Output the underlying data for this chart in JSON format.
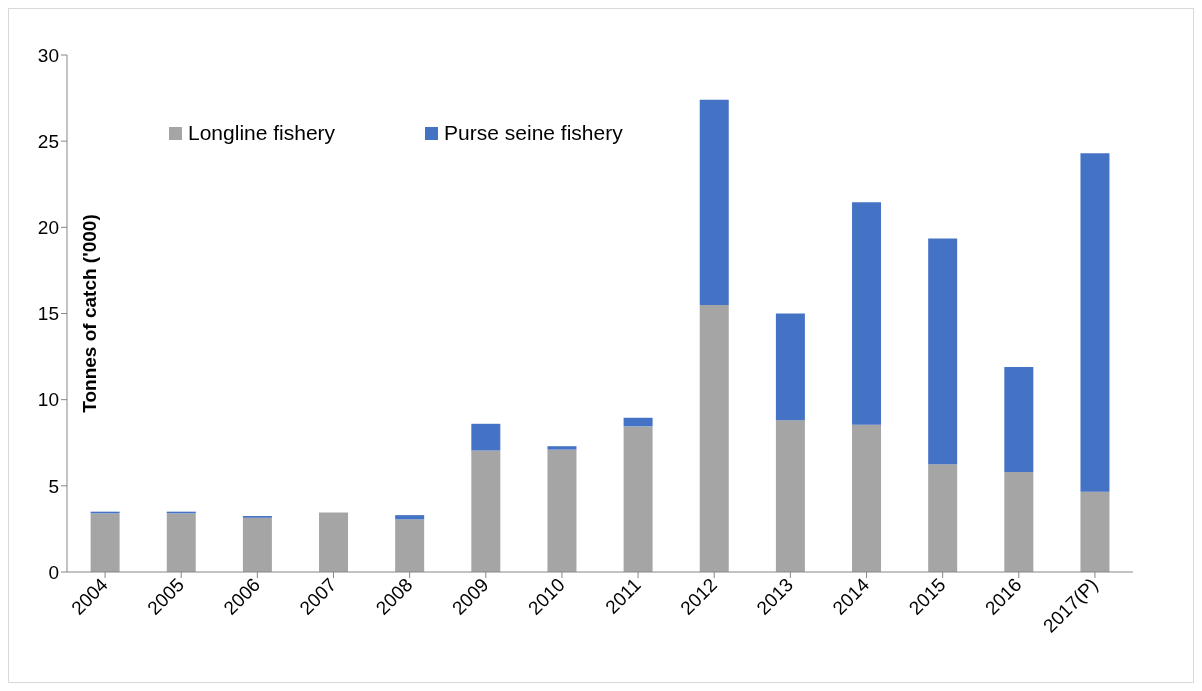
{
  "chart_data": {
    "type": "bar",
    "stacked": true,
    "ylabel": "Tonnes of catch ('000)",
    "categories": [
      "2004",
      "2005",
      "2006",
      "2007",
      "2008",
      "2009",
      "2010",
      "2011",
      "2012",
      "2013",
      "2014",
      "2015",
      "2016",
      "2017(P)"
    ],
    "series": [
      {
        "name": "Longline fishery",
        "color": "#a5a5a5",
        "values": [
          3.4,
          3.4,
          3.15,
          3.45,
          3.05,
          7.05,
          7.1,
          8.45,
          15.5,
          8.8,
          8.55,
          6.25,
          5.8,
          4.65
        ]
      },
      {
        "name": "Purse seine fishery",
        "color": "#4472c4",
        "values": [
          0.1,
          0.1,
          0.1,
          0,
          0.25,
          1.55,
          0.2,
          0.5,
          11.9,
          6.2,
          12.9,
          13.1,
          6.1,
          19.65
        ]
      }
    ],
    "ylim": [
      0,
      30
    ],
    "yticks": [
      0,
      5,
      10,
      15,
      20,
      25,
      30
    ],
    "grid": false,
    "legend": "top left"
  }
}
